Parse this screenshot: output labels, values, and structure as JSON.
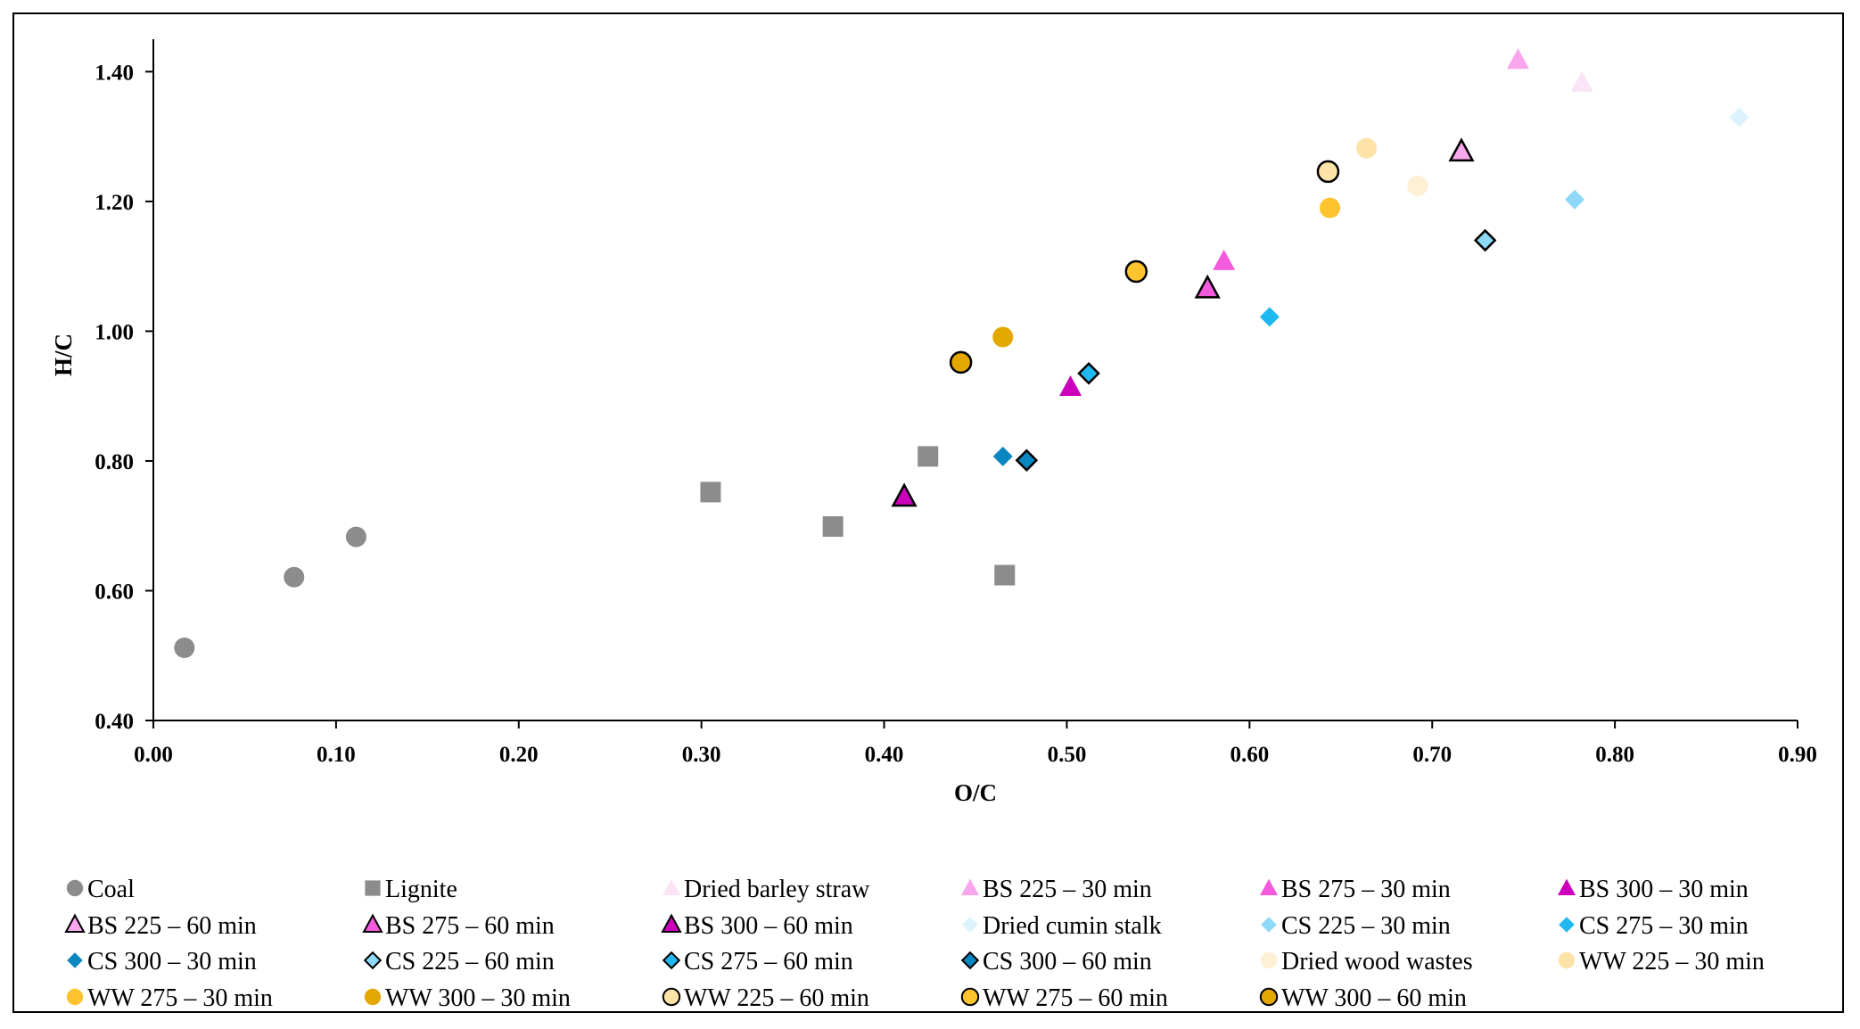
{
  "chart_data": {
    "type": "scatter",
    "title": "",
    "xlabel": "O/C",
    "ylabel": "H/C",
    "xlim": [
      0.0,
      0.9
    ],
    "ylim": [
      0.4,
      1.45
    ],
    "xticks": [
      "0.00",
      "0.10",
      "0.20",
      "0.30",
      "0.40",
      "0.50",
      "0.60",
      "0.70",
      "0.80",
      "0.90"
    ],
    "yticks": [
      "0.40",
      "0.60",
      "0.80",
      "1.00",
      "1.20",
      "1.40"
    ],
    "grid": false,
    "legend_position": "bottom",
    "series": [
      {
        "name": "Coal",
        "marker": "circle",
        "fill": "#8c8c8c",
        "stroke": "none",
        "points": [
          [
            0.017,
            0.512
          ],
          [
            0.077,
            0.621
          ],
          [
            0.111,
            0.683
          ]
        ]
      },
      {
        "name": "Lignite",
        "marker": "square",
        "fill": "#8c8c8c",
        "stroke": "none",
        "points": [
          [
            0.305,
            0.752
          ],
          [
            0.372,
            0.699
          ],
          [
            0.424,
            0.807
          ],
          [
            0.466,
            0.624
          ]
        ]
      },
      {
        "name": "Dried barley straw",
        "marker": "triangle",
        "fill": "#fce4f7",
        "stroke": "none",
        "points": [
          [
            0.782,
            1.383
          ]
        ]
      },
      {
        "name": "BS 225 – 30 min",
        "marker": "triangle",
        "fill": "#f9a6ec",
        "stroke": "none",
        "points": [
          [
            0.747,
            1.418
          ]
        ]
      },
      {
        "name": "BS 275 – 30 min",
        "marker": "triangle",
        "fill": "#f45bdc",
        "stroke": "none",
        "points": [
          [
            0.586,
            1.108
          ]
        ]
      },
      {
        "name": "BS 300 – 30 min",
        "marker": "triangle",
        "fill": "#cc00bb",
        "stroke": "none",
        "points": [
          [
            0.502,
            0.914
          ]
        ]
      },
      {
        "name": "BS 225 – 60 min",
        "marker": "triangle",
        "fill": "#f9a6ec",
        "stroke": "#000",
        "points": [
          [
            0.716,
            1.277
          ]
        ]
      },
      {
        "name": "BS 275 – 60 min",
        "marker": "triangle",
        "fill": "#f45bdc",
        "stroke": "#000",
        "points": [
          [
            0.577,
            1.066
          ]
        ]
      },
      {
        "name": "BS 300 – 60 min",
        "marker": "triangle",
        "fill": "#cc00bb",
        "stroke": "#000",
        "points": [
          [
            0.411,
            0.745
          ]
        ]
      },
      {
        "name": "Dried cumin stalk",
        "marker": "diamond",
        "fill": "#dcf2fd",
        "stroke": "none",
        "points": [
          [
            0.868,
            1.33
          ]
        ]
      },
      {
        "name": "CS 225 – 30 min",
        "marker": "diamond",
        "fill": "#8ed8f8",
        "stroke": "none",
        "points": [
          [
            0.778,
            1.203
          ]
        ]
      },
      {
        "name": "CS 275 – 30 min",
        "marker": "diamond",
        "fill": "#1fb8f0",
        "stroke": "none",
        "points": [
          [
            0.611,
            1.022
          ]
        ]
      },
      {
        "name": "CS 300 – 30 min",
        "marker": "diamond",
        "fill": "#0a86c0",
        "stroke": "none",
        "points": [
          [
            0.465,
            0.807
          ]
        ]
      },
      {
        "name": "CS 225 – 60 min",
        "marker": "diamond",
        "fill": "#8ed8f8",
        "stroke": "#000",
        "points": [
          [
            0.729,
            1.14
          ]
        ]
      },
      {
        "name": "CS 275 – 60 min",
        "marker": "diamond",
        "fill": "#1fb8f0",
        "stroke": "#000",
        "points": [
          [
            0.512,
            0.935
          ]
        ]
      },
      {
        "name": "CS 300 – 60 min",
        "marker": "diamond",
        "fill": "#0a86c0",
        "stroke": "#000",
        "points": [
          [
            0.478,
            0.801
          ]
        ]
      },
      {
        "name": "Dried wood wastes",
        "marker": "circle",
        "fill": "#fdf0d5",
        "stroke": "none",
        "points": [
          [
            0.692,
            1.224
          ]
        ]
      },
      {
        "name": "WW 225 – 30 min",
        "marker": "circle",
        "fill": "#fde3a7",
        "stroke": "none",
        "points": [
          [
            0.664,
            1.282
          ]
        ]
      },
      {
        "name": "WW 275 – 30 min",
        "marker": "circle",
        "fill": "#fdc42e",
        "stroke": "none",
        "points": [
          [
            0.644,
            1.19
          ]
        ]
      },
      {
        "name": "WW 300 – 30 min",
        "marker": "circle",
        "fill": "#e3a800",
        "stroke": "none",
        "points": [
          [
            0.465,
            0.991
          ]
        ]
      },
      {
        "name": "WW 225 – 60 min",
        "marker": "circle",
        "fill": "#fde3a7",
        "stroke": "#000",
        "points": [
          [
            0.643,
            1.246
          ]
        ]
      },
      {
        "name": "WW 275 – 60 min",
        "marker": "circle",
        "fill": "#fdc42e",
        "stroke": "#000",
        "points": [
          [
            0.538,
            1.092
          ]
        ]
      },
      {
        "name": "WW 300 – 60 min",
        "marker": "circle",
        "fill": "#e3a800",
        "stroke": "#000",
        "points": [
          [
            0.442,
            0.952
          ]
        ]
      }
    ]
  }
}
